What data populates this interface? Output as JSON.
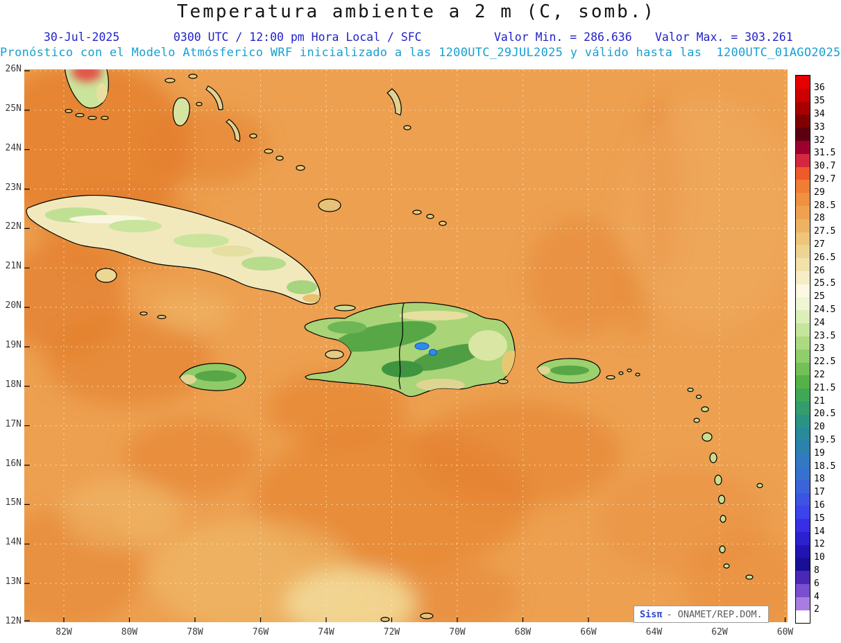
{
  "header": {
    "title": "Temperatura ambiente a 2 m (C, somb.)",
    "date": "30-Jul-2025",
    "time_info": "0300 UTC / 12:00 pm Hora Local / SFC",
    "valor_min": "Valor Min. = 286.636",
    "valor_max": "Valor Max. = 303.261",
    "forecast_line": "Pronóstico con el Modelo Atmósferico WRF inicializado a las 1200UTC_29JUL2025 y válido hasta las  1200UTC_01AGO2025"
  },
  "map": {
    "lat_labels": [
      "26N",
      "25N",
      "24N",
      "23N",
      "22N",
      "21N",
      "20N",
      "19N",
      "18N",
      "17N",
      "16N",
      "15N",
      "14N",
      "13N",
      "12N"
    ],
    "lon_labels": [
      "82W",
      "80W",
      "78W",
      "76W",
      "74W",
      "72W",
      "70W",
      "68W",
      "66W",
      "64W",
      "62W",
      "60W"
    ]
  },
  "colorbar": {
    "cells": [
      {
        "label": "36",
        "color": "#e60000"
      },
      {
        "label": "35",
        "color": "#cc0000"
      },
      {
        "label": "34",
        "color": "#a80000"
      },
      {
        "label": "33",
        "color": "#800000"
      },
      {
        "label": "32",
        "color": "#5c0010"
      },
      {
        "label": "31.5",
        "color": "#9c0030"
      },
      {
        "label": "30.7",
        "color": "#d42840"
      },
      {
        "label": "29.7",
        "color": "#ef5a2a"
      },
      {
        "label": "29",
        "color": "#f07d33"
      },
      {
        "label": "28.5",
        "color": "#ef9140"
      },
      {
        "label": "28",
        "color": "#eea251"
      },
      {
        "label": "27.5",
        "color": "#edb363"
      },
      {
        "label": "27",
        "color": "#edc57b"
      },
      {
        "label": "26.5",
        "color": "#eed492"
      },
      {
        "label": "26",
        "color": "#f1e1ab"
      },
      {
        "label": "25.5",
        "color": "#f6edc6"
      },
      {
        "label": "25",
        "color": "#fbf8e3"
      },
      {
        "label": "24.5",
        "color": "#eef6d4"
      },
      {
        "label": "24",
        "color": "#dcefb9"
      },
      {
        "label": "23.5",
        "color": "#c5e59d"
      },
      {
        "label": "23",
        "color": "#abda83"
      },
      {
        "label": "22.5",
        "color": "#8fce6b"
      },
      {
        "label": "22",
        "color": "#72c057"
      },
      {
        "label": "21.5",
        "color": "#55b249"
      },
      {
        "label": "21",
        "color": "#3fa854"
      },
      {
        "label": "20.5",
        "color": "#339d6d"
      },
      {
        "label": "20",
        "color": "#2b9384"
      },
      {
        "label": "19.5",
        "color": "#288a9b"
      },
      {
        "label": "19",
        "color": "#2b82af"
      },
      {
        "label": "18.5",
        "color": "#317ac1"
      },
      {
        "label": "18",
        "color": "#3771d0"
      },
      {
        "label": "17",
        "color": "#3b63da"
      },
      {
        "label": "16",
        "color": "#3d53e2"
      },
      {
        "label": "15",
        "color": "#3d43ea"
      },
      {
        "label": "14",
        "color": "#372fe6"
      },
      {
        "label": "12",
        "color": "#2c20cf"
      },
      {
        "label": "10",
        "color": "#2114b2"
      },
      {
        "label": "8",
        "color": "#190e96"
      },
      {
        "label": "6",
        "color": "#4a28b4"
      },
      {
        "label": "4",
        "color": "#7a4ed0"
      },
      {
        "label": "2",
        "color": "#a97ce2"
      },
      {
        "label": "",
        "color": "#ffffff"
      }
    ]
  },
  "watermark": {
    "brand": "Sisπ",
    "rest": "- ONAMET/REP.DOM."
  },
  "chart_data": {
    "type": "heatmap",
    "title": "Temperatura ambiente a 2 m (C, somb.)",
    "units": "C",
    "value_min": 286.636,
    "value_max": 303.261,
    "valid_time": "30-Jul-2025 0300 UTC / 12:00 pm Hora Local / SFC",
    "model_run": "1200UTC_29JUL2025",
    "valid_until": "1200UTC_01AGO2025",
    "x_ticks": [
      "82W",
      "80W",
      "78W",
      "76W",
      "74W",
      "72W",
      "70W",
      "68W",
      "66W",
      "64W",
      "62W",
      "60W"
    ],
    "y_ticks": [
      "26N",
      "25N",
      "24N",
      "23N",
      "22N",
      "21N",
      "20N",
      "19N",
      "18N",
      "17N",
      "16N",
      "15N",
      "14N",
      "13N",
      "12N"
    ],
    "legend_levels": [
      36,
      35,
      34,
      33,
      32,
      31.5,
      30.7,
      29.7,
      29,
      28.5,
      28,
      27.5,
      27,
      26.5,
      26,
      25.5,
      25,
      24.5,
      24,
      23.5,
      23,
      22.5,
      22,
      21.5,
      21,
      20.5,
      20,
      19.5,
      19,
      18.5,
      18,
      17,
      16,
      15,
      14,
      12,
      10,
      8,
      6,
      4,
      2
    ],
    "legend_position": "right",
    "grid": true
  }
}
